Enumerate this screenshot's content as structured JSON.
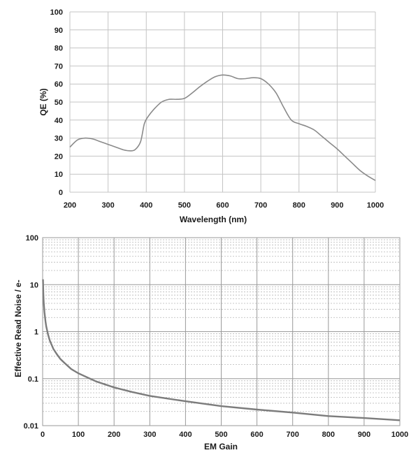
{
  "chart_data": [
    {
      "type": "line",
      "title": "",
      "xlabel": "Wavelength (nm)",
      "ylabel": "QE (%)",
      "xlim": [
        200,
        1000
      ],
      "ylim": [
        0,
        100
      ],
      "grid": true,
      "xticks": [
        "200",
        "300",
        "400",
        "500",
        "600",
        "700",
        "800",
        "900",
        "1000"
      ],
      "yticks": [
        "0",
        "10",
        "20",
        "30",
        "40",
        "50",
        "60",
        "70",
        "80",
        "90",
        "100"
      ],
      "series": [
        {
          "x": [
            200,
            220,
            240,
            260,
            280,
            300,
            320,
            340,
            355,
            370,
            385,
            395,
            405,
            420,
            440,
            460,
            480,
            500,
            520,
            540,
            560,
            580,
            600,
            620,
            640,
            660,
            680,
            700,
            720,
            740,
            760,
            780,
            800,
            820,
            840,
            860,
            880,
            900,
            920,
            940,
            960,
            980,
            1000
          ],
          "y": [
            25,
            29,
            30,
            29.5,
            28,
            26.5,
            25,
            23.5,
            23,
            23.5,
            28,
            38,
            42,
            46,
            50,
            51.5,
            51.5,
            52,
            55,
            58.5,
            61.5,
            64,
            65,
            64.5,
            63,
            63,
            63.5,
            63,
            60,
            55,
            47,
            40,
            38,
            36.5,
            34.5,
            31,
            27.5,
            24,
            20,
            16,
            12,
            9,
            6.5
          ]
        }
      ]
    },
    {
      "type": "line",
      "title": "",
      "xlabel": "EM Gain",
      "ylabel": "Effective Read Noise / e-",
      "yscale": "log",
      "xlim": [
        0,
        1000
      ],
      "ylim": [
        0.01,
        100
      ],
      "grid": true,
      "xticks": [
        "0",
        "100",
        "200",
        "300",
        "400",
        "500",
        "600",
        "700",
        "800",
        "900",
        "1000"
      ],
      "yticks": [
        "0.01",
        "0.1",
        "1",
        "10",
        "100"
      ],
      "series": [
        {
          "x": [
            1,
            2,
            3,
            5,
            8,
            10,
            15,
            20,
            30,
            40,
            50,
            60,
            80,
            100,
            150,
            200,
            250,
            300,
            400,
            500,
            600,
            700,
            800,
            900,
            1000
          ],
          "y": [
            13,
            6.5,
            4.3,
            2.6,
            1.65,
            1.3,
            0.87,
            0.65,
            0.43,
            0.33,
            0.26,
            0.22,
            0.16,
            0.13,
            0.087,
            0.065,
            0.052,
            0.043,
            0.033,
            0.026,
            0.022,
            0.019,
            0.016,
            0.0145,
            0.013
          ]
        }
      ]
    }
  ]
}
